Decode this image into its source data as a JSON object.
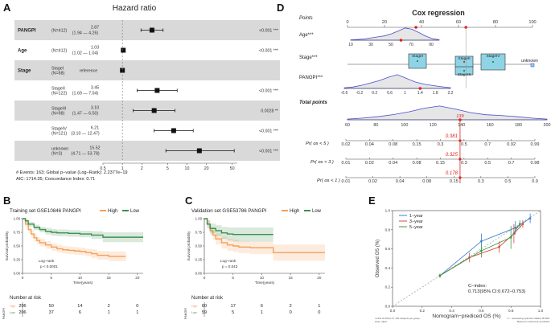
{
  "figure": {
    "panel_labels": [
      "A",
      "B",
      "C",
      "D",
      "E"
    ],
    "colors": {
      "high": "#f5a05a",
      "low": "#3f8f52",
      "row_band": "#d9d9d9",
      "accent_red": "#e0201c",
      "density_blue": "#4a4ad0",
      "density_fill": "#e6e6e6",
      "box_fill": "#8fd3e6",
      "one_year": "#3a7fd0",
      "three_year": "#d94a3c",
      "five_year": "#3c9a4a"
    }
  },
  "chart_data": [
    {
      "id": "A",
      "type": "forest",
      "title": "Hazard ratio",
      "xlim": [
        0.5,
        60
      ],
      "xscale": "log",
      "xticks": [
        "0.5",
        "1",
        "2",
        "5",
        "10",
        "20",
        "50"
      ],
      "xtick_values": [
        0.5,
        1,
        2,
        5,
        10,
        20,
        50
      ],
      "rows": [
        {
          "variable": "PANGPI",
          "sub": "",
          "n": "(N=412)",
          "hr_text": "2.87",
          "ci_text": "(1.94 — 4.26)",
          "hr": 2.87,
          "lo": 1.94,
          "hi": 4.26,
          "p": "<0.001 ***",
          "shade": true
        },
        {
          "variable": "Age",
          "sub": "",
          "n": "(N=412)",
          "hr_text": "1.03",
          "ci_text": "(1.02 — 1.04)",
          "hr": 1.03,
          "lo": 1.02,
          "hi": 1.04,
          "p": "<0.001 ***",
          "shade": false
        },
        {
          "variable": "Stage",
          "sub": "StageI",
          "n": "(N=68)",
          "hr_text": "reference",
          "ci_text": "",
          "hr": 1.0,
          "lo": 1.0,
          "hi": 1.0,
          "p": "",
          "shade": true
        },
        {
          "variable": "",
          "sub": "StageII",
          "n": "(N=122)",
          "hr_text": "3.45",
          "ci_text": "(1.69 — 7.04)",
          "hr": 3.45,
          "lo": 1.69,
          "hi": 7.04,
          "p": "<0.001 ***",
          "shade": false
        },
        {
          "variable": "",
          "sub": "StageIII",
          "n": "(N=98)",
          "hr_text": "3.10",
          "ci_text": "(1.47 — 6.50)",
          "hr": 3.1,
          "lo": 1.47,
          "hi": 6.5,
          "p": "0.0028 **",
          "shade": true
        },
        {
          "variable": "",
          "sub": "StageIV",
          "n": "(N=121)",
          "hr_text": "6.21",
          "ci_text": "(3.10 — 12.47)",
          "hr": 6.21,
          "lo": 3.1,
          "hi": 12.47,
          "p": "<0.001 ***",
          "shade": false
        },
        {
          "variable": "",
          "sub": "unknown",
          "n": "(N=3)",
          "hr_text": "15.52",
          "ci_text": "(4.71 — 53.78)",
          "hr": 15.52,
          "lo": 4.71,
          "hi": 53.78,
          "p": "<0.001 ***",
          "shade": true
        }
      ],
      "footer": [
        "# Events: 163; Global p−value (Log−Rank): 2.2377e−19",
        "AIC: 1714.35; Concordance Index: 0.71"
      ]
    },
    {
      "id": "B",
      "type": "kaplan-meier",
      "title": "Training set GSE10846 PANGPI",
      "legend": [
        "High",
        "Low"
      ],
      "ylabel": "Survival probability",
      "xlabel": "Time(years)",
      "xlim": [
        0,
        21
      ],
      "ylim": [
        0,
        1
      ],
      "xticks": [
        0,
        5,
        10,
        15,
        20
      ],
      "yticks": [
        "0.00",
        "0.25",
        "0.50",
        "0.75",
        "1.00"
      ],
      "ytick_values": [
        0,
        0.25,
        0.5,
        0.75,
        1
      ],
      "annotation": [
        "Log−rank",
        "p < 0.0001"
      ],
      "series": [
        {
          "name": "High",
          "x": [
            0,
            0.5,
            1,
            1.5,
            2,
            2.5,
            3,
            4,
            5,
            6,
            7,
            8,
            9,
            10,
            11,
            12,
            13,
            15,
            17,
            18
          ],
          "y": [
            1,
            0.9,
            0.8,
            0.72,
            0.65,
            0.6,
            0.56,
            0.52,
            0.48,
            0.45,
            0.43,
            0.42,
            0.41,
            0.4,
            0.38,
            0.36,
            0.33,
            0.31,
            0.31,
            0.31
          ],
          "ci_lo": [
            1,
            0.85,
            0.74,
            0.65,
            0.58,
            0.53,
            0.49,
            0.45,
            0.41,
            0.38,
            0.36,
            0.35,
            0.34,
            0.33,
            0.31,
            0.28,
            0.25,
            0.22,
            0.22,
            0.22
          ],
          "ci_hi": [
            1,
            0.95,
            0.86,
            0.79,
            0.72,
            0.67,
            0.63,
            0.59,
            0.55,
            0.52,
            0.5,
            0.49,
            0.48,
            0.47,
            0.45,
            0.44,
            0.41,
            0.4,
            0.4,
            0.4
          ]
        },
        {
          "name": "Low",
          "x": [
            0,
            0.5,
            1,
            2,
            3,
            4,
            5,
            6,
            8,
            10,
            12,
            14,
            16,
            18,
            20,
            21
          ],
          "y": [
            1,
            0.96,
            0.9,
            0.84,
            0.8,
            0.77,
            0.75,
            0.74,
            0.73,
            0.72,
            0.7,
            0.66,
            0.66,
            0.66,
            0.66,
            0.66
          ],
          "ci_lo": [
            1,
            0.93,
            0.86,
            0.79,
            0.75,
            0.71,
            0.69,
            0.68,
            0.67,
            0.66,
            0.63,
            0.57,
            0.57,
            0.57,
            0.57,
            0.57
          ],
          "ci_hi": [
            1,
            0.99,
            0.94,
            0.89,
            0.85,
            0.83,
            0.81,
            0.8,
            0.79,
            0.78,
            0.77,
            0.75,
            0.75,
            0.75,
            0.75,
            0.75
          ]
        }
      ],
      "risk_table": {
        "title": "Number at risk",
        "ylabel": "PANGPI",
        "rows": [
          {
            "label": "High",
            "values": [
              "206",
              "50",
              "14",
              "2",
              "0"
            ]
          },
          {
            "label": "Low",
            "values": [
              "206",
              "37",
              "6",
              "1",
              "1"
            ]
          }
        ]
      }
    },
    {
      "id": "C",
      "type": "kaplan-meier",
      "title": "Validation set GSE53786 PANGPI",
      "legend": [
        "High",
        "Low"
      ],
      "ylabel": "Survival probability",
      "xlabel": "Time(years)",
      "xlim": [
        0,
        21
      ],
      "ylim": [
        0,
        1
      ],
      "xticks": [
        0,
        5,
        10,
        15,
        20
      ],
      "yticks": [
        "0.00",
        "0.25",
        "0.50",
        "0.75",
        "1.00"
      ],
      "ytick_values": [
        0,
        0.25,
        0.5,
        0.75,
        1
      ],
      "annotation": [
        "Log−rank",
        "p = 0.043"
      ],
      "series": [
        {
          "name": "High",
          "x": [
            0,
            0.5,
            1,
            1.5,
            2,
            3,
            4,
            5,
            6,
            8,
            10,
            12,
            14,
            20,
            21
          ],
          "y": [
            1,
            0.9,
            0.78,
            0.7,
            0.63,
            0.56,
            0.52,
            0.5,
            0.48,
            0.47,
            0.47,
            0.38,
            0.38,
            0.38,
            0.38
          ],
          "ci_lo": [
            1,
            0.83,
            0.7,
            0.61,
            0.53,
            0.45,
            0.41,
            0.39,
            0.37,
            0.35,
            0.35,
            0.23,
            0.23,
            0.23,
            0.23
          ],
          "ci_hi": [
            1,
            0.97,
            0.86,
            0.79,
            0.73,
            0.67,
            0.63,
            0.61,
            0.59,
            0.58,
            0.58,
            0.53,
            0.53,
            0.53,
            0.53
          ]
        },
        {
          "name": "Low",
          "x": [
            0,
            0.5,
            1,
            2,
            3,
            4,
            5,
            8,
            11,
            12
          ],
          "y": [
            1,
            0.9,
            0.82,
            0.78,
            0.74,
            0.72,
            0.71,
            0.71,
            0.71,
            0.71
          ],
          "ci_lo": [
            1,
            0.83,
            0.73,
            0.68,
            0.63,
            0.6,
            0.58,
            0.58,
            0.58,
            0.58
          ],
          "ci_hi": [
            1,
            0.97,
            0.91,
            0.88,
            0.85,
            0.84,
            0.84,
            0.84,
            0.84,
            0.84
          ]
        }
      ],
      "risk_table": {
        "title": "Number at risk",
        "ylabel": "PANGPI",
        "rows": [
          {
            "label": "High",
            "values": [
              "60",
              "17",
              "6",
              "2",
              "1"
            ]
          },
          {
            "label": "Low",
            "values": [
              "59",
              "5",
              "1",
              "0",
              "0"
            ]
          }
        ]
      }
    },
    {
      "id": "D",
      "type": "nomogram",
      "title": "Cox regression",
      "points_axis": {
        "label": "Points",
        "ticks": [
          "0",
          "20",
          "40",
          "60",
          "80",
          "100"
        ],
        "values": [
          0,
          20,
          40,
          60,
          80,
          100
        ]
      },
      "age_axis": {
        "label": "Age***",
        "ticks": [
          "10",
          "30",
          "50",
          "70",
          "90"
        ],
        "values": [
          10,
          30,
          50,
          70,
          90
        ],
        "range": [
          10,
          98
        ],
        "density": [
          0.02,
          0.05,
          0.1,
          0.18,
          0.26,
          0.34,
          0.5,
          0.72,
          0.95,
          0.85,
          0.6,
          0.32,
          0.12,
          0.03
        ]
      },
      "stage_axis": {
        "label": "Stage***",
        "boxes": [
          "StageI",
          "StageII",
          "StageIII",
          "StageIV"
        ],
        "box_points": [
          0,
          56,
          56,
          70
        ],
        "unknown_label": "unknown"
      },
      "pangpi_axis": {
        "label": "PANGPI***",
        "ticks": [
          "-0.6",
          "-0.2",
          "0.2",
          "0.6",
          "1",
          "1.4",
          "1.8",
          "2.2"
        ],
        "values": [
          -0.6,
          -0.2,
          0.2,
          0.6,
          1.0,
          1.4,
          1.8,
          2.2
        ],
        "density": [
          0.04,
          0.1,
          0.22,
          0.38,
          0.55,
          0.78,
          0.95,
          0.7,
          0.45,
          0.3,
          0.2,
          0.12,
          0.05
        ]
      },
      "total_axis": {
        "label": "Total points",
        "ticks": [
          "60",
          "80",
          "100",
          "120",
          "140",
          "160",
          "180",
          "200"
        ],
        "values": [
          60,
          80,
          100,
          120,
          140,
          160,
          180,
          200
        ],
        "density": [
          0.05,
          0.12,
          0.22,
          0.36,
          0.55,
          0.8,
          0.95,
          0.75,
          0.5,
          0.35,
          0.3,
          0.22,
          0.12,
          0.05
        ],
        "marker_value": 139,
        "marker_label": "139"
      },
      "survival_axes": [
        {
          "label": "Pr( os < 5 )",
          "ticks": [
            "0.02",
            "0.04",
            "0.08",
            "0.15",
            "0.3",
            "0.5",
            "0.7",
            "0.92",
            "0.99"
          ],
          "marker_label": "0.381"
        },
        {
          "label": "Pr( os < 3 )",
          "ticks": [
            "0.01",
            "0.02",
            "0.04",
            "0.08",
            "0.15",
            "0.3",
            "0.5",
            "0.7",
            "0.98"
          ],
          "marker_label": "0.325"
        },
        {
          "label": "Pr( os < 1 )",
          "ticks": [
            "0.01",
            "0.02",
            "0.04",
            "0.08",
            "0.15",
            "0.3",
            "0.5",
            "0.9"
          ],
          "marker_label": "0.178"
        }
      ]
    },
    {
      "id": "E",
      "type": "calibration",
      "xlabel": "Nomogram−prediced OS (%)",
      "ylabel": "Observed OS (%)",
      "xlim": [
        0,
        1
      ],
      "ylim": [
        0,
        1
      ],
      "xticks": [
        "0.0",
        "0.2",
        "0.4",
        "0.6",
        "0.8",
        "1.0"
      ],
      "yticks": [
        "0.0",
        "0.2",
        "0.4",
        "0.6",
        "0.8",
        "1.0"
      ],
      "tick_values": [
        0,
        0.2,
        0.4,
        0.6,
        0.8,
        1.0
      ],
      "legend": [
        "1−year",
        "3−year",
        "5−year"
      ],
      "annotation": [
        "C−index:",
        "0.713(95% CI:0.672−0.753)"
      ],
      "footer_left": [
        "n=412 d=160 p=5, 100 subjects per group",
        "Gray: ideal"
      ],
      "footer_right": [
        "X − resampling optimism added, B=500",
        "Based on observed−predicted"
      ],
      "series": [
        {
          "name": "1−year",
          "x": [
            0.32,
            0.6,
            0.83,
            0.93
          ],
          "y": [
            0.32,
            0.68,
            0.82,
            0.92
          ],
          "err": [
            0.02,
            0.08,
            0.07,
            0.05
          ]
        },
        {
          "name": "3−year",
          "x": [
            0.32,
            0.52,
            0.72,
            0.82,
            0.88
          ],
          "y": [
            0.32,
            0.51,
            0.62,
            0.76,
            0.86
          ],
          "err": [
            0.02,
            0.05,
            0.06,
            0.1,
            0.04
          ]
        },
        {
          "name": "5−year",
          "x": [
            0.32,
            0.6,
            0.8,
            0.86
          ],
          "y": [
            0.32,
            0.58,
            0.72,
            0.86
          ],
          "err": [
            0.02,
            0.07,
            0.12,
            0.04
          ]
        }
      ]
    }
  ]
}
